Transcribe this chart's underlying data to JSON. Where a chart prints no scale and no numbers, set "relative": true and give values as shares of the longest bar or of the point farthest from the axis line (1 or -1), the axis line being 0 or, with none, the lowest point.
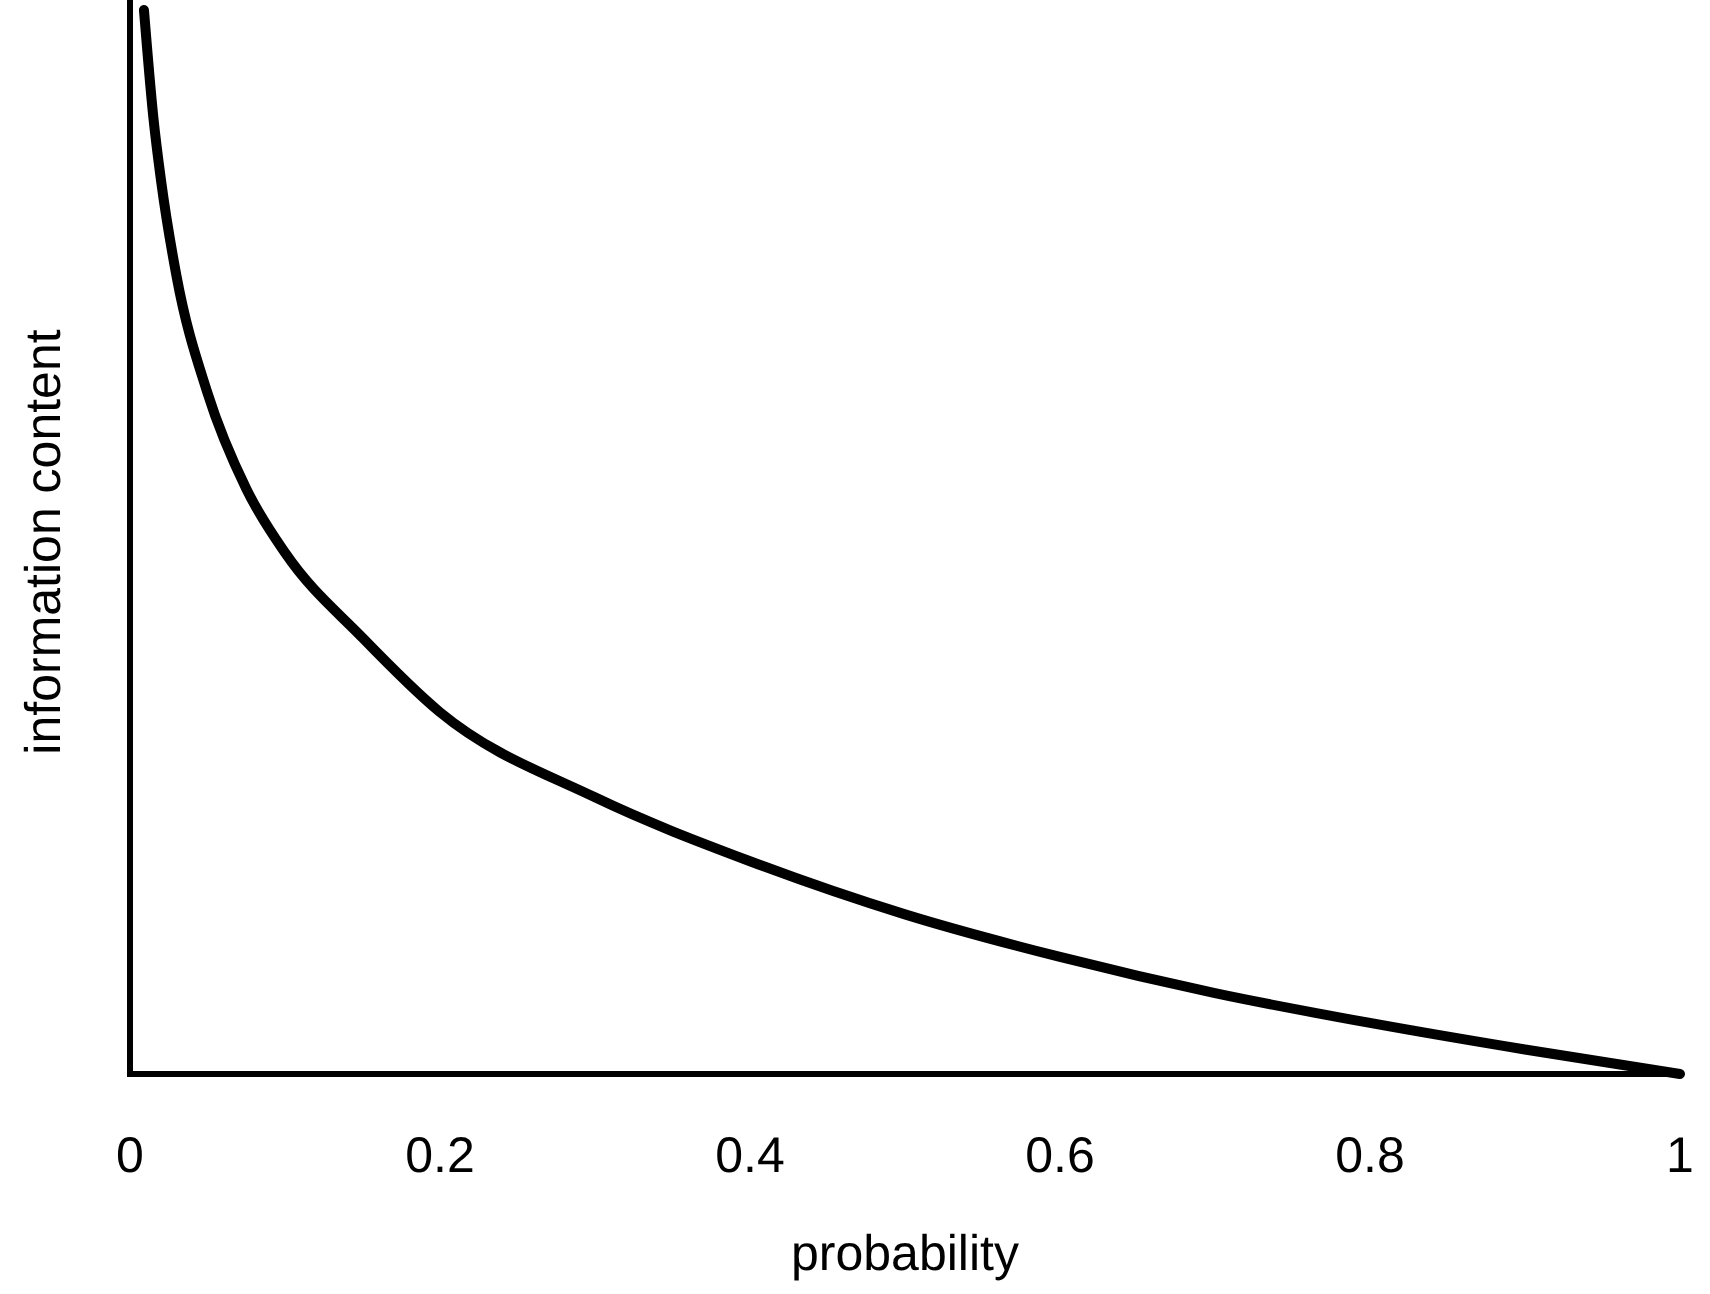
{
  "chart_data": {
    "type": "line",
    "relative": true,
    "xlabel": "probability",
    "ylabel": "information content",
    "xlim": [
      0,
      1
    ],
    "xticks": [
      0,
      0.2,
      0.4,
      0.6,
      0.8,
      1
    ],
    "grid": false,
    "marker": "none",
    "line_style": "solid",
    "series": [
      {
        "color": "#000000",
        "x": [
          0.009,
          0.015,
          0.02,
          0.03,
          0.05,
          0.075,
          0.1,
          0.15,
          0.2,
          0.3,
          0.4,
          0.5,
          0.6,
          0.7,
          0.8,
          0.9,
          1
        ],
        "values": [
          1,
          0.9,
          0.84,
          0.75,
          0.64,
          0.55,
          0.49,
          0.41,
          0.34,
          0.26,
          0.2,
          0.15,
          0.11,
          0.076,
          0.048,
          0.023,
          0
        ]
      }
    ]
  }
}
